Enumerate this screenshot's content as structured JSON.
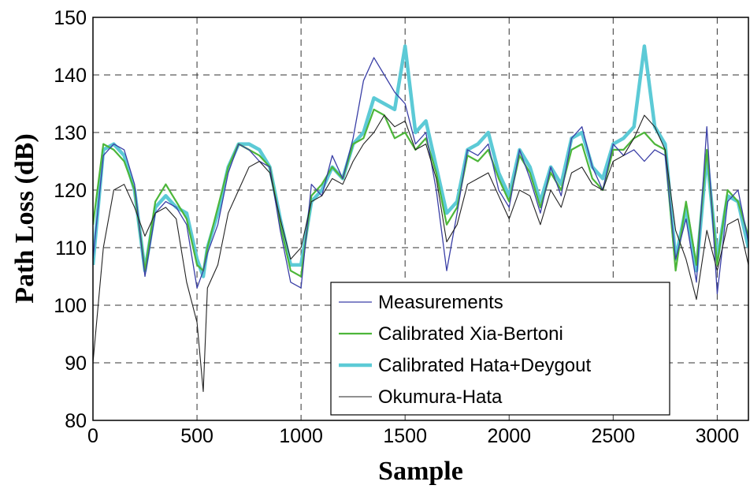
{
  "chart_data": {
    "type": "line",
    "title": "",
    "xlabel": "Sample",
    "ylabel": "Path Loss (dB)",
    "xlim": [
      0,
      3150
    ],
    "ylim": [
      80,
      150
    ],
    "xticks": [
      0,
      500,
      1000,
      1500,
      2000,
      2500,
      3000
    ],
    "yticks": [
      80,
      90,
      100,
      110,
      120,
      130,
      140,
      150
    ],
    "grid": true,
    "legend_position": "bottom-right",
    "series": [
      {
        "name": "Measurements",
        "color": "#3a3fa6",
        "x": [
          0,
          50,
          100,
          150,
          200,
          250,
          300,
          350,
          400,
          450,
          500,
          530,
          550,
          600,
          650,
          700,
          750,
          800,
          850,
          900,
          950,
          1000,
          1050,
          1100,
          1150,
          1200,
          1250,
          1300,
          1350,
          1400,
          1450,
          1500,
          1550,
          1600,
          1650,
          1700,
          1750,
          1800,
          1850,
          1900,
          1950,
          2000,
          2050,
          2100,
          2150,
          2200,
          2250,
          2300,
          2350,
          2400,
          2450,
          2500,
          2550,
          2600,
          2650,
          2700,
          2750,
          2800,
          2850,
          2900,
          2950,
          3000,
          3050,
          3100,
          3150
        ],
        "y": [
          108,
          126,
          128,
          127,
          121,
          105,
          116,
          118,
          117,
          114,
          103,
          106,
          109,
          114,
          123,
          128,
          127,
          125,
          124,
          113,
          104,
          103,
          121,
          119,
          126,
          122,
          129,
          139,
          143,
          140,
          137,
          135,
          128,
          130,
          120,
          106,
          116,
          127,
          126,
          128,
          120,
          117,
          127,
          122,
          116,
          124,
          119,
          129,
          131,
          124,
          120,
          128,
          126,
          127,
          125,
          127,
          126,
          108,
          115,
          104,
          131,
          102,
          118,
          120,
          111
        ]
      },
      {
        "name": "Calibrated Xia-Bertoni",
        "color": "#4db63a",
        "x": [
          0,
          50,
          100,
          150,
          200,
          250,
          300,
          350,
          400,
          450,
          500,
          530,
          550,
          600,
          650,
          700,
          750,
          800,
          850,
          900,
          950,
          1000,
          1050,
          1100,
          1150,
          1200,
          1250,
          1300,
          1350,
          1400,
          1450,
          1500,
          1550,
          1600,
          1650,
          1700,
          1750,
          1800,
          1850,
          1900,
          1950,
          2000,
          2050,
          2100,
          2150,
          2200,
          2250,
          2300,
          2350,
          2400,
          2450,
          2500,
          2550,
          2600,
          2650,
          2700,
          2750,
          2800,
          2850,
          2900,
          2950,
          3000,
          3050,
          3100,
          3150
        ],
        "y": [
          114,
          128,
          127,
          125,
          120,
          106,
          118,
          121,
          118,
          115,
          107,
          106,
          110,
          117,
          124,
          128,
          127,
          126,
          124,
          114,
          106,
          105,
          119,
          121,
          124,
          122,
          128,
          129,
          134,
          133,
          129,
          130,
          127,
          129,
          123,
          114,
          117,
          126,
          125,
          127,
          122,
          118,
          126,
          123,
          117,
          123,
          120,
          127,
          128,
          122,
          120,
          127,
          127,
          129,
          130,
          128,
          127,
          106,
          118,
          107,
          127,
          107,
          120,
          118,
          112
        ]
      },
      {
        "name": "Calibrated Hata+Deygout",
        "color": "#5ccad6",
        "x": [
          0,
          50,
          100,
          150,
          200,
          250,
          300,
          350,
          400,
          450,
          500,
          530,
          550,
          600,
          650,
          700,
          750,
          800,
          850,
          900,
          950,
          1000,
          1050,
          1100,
          1150,
          1200,
          1250,
          1300,
          1350,
          1400,
          1450,
          1500,
          1550,
          1600,
          1650,
          1700,
          1750,
          1800,
          1850,
          1900,
          1950,
          2000,
          2050,
          2100,
          2150,
          2200,
          2250,
          2300,
          2350,
          2400,
          2450,
          2500,
          2550,
          2600,
          2650,
          2700,
          2750,
          2800,
          2850,
          2900,
          2950,
          3000,
          3050,
          3100,
          3150
        ],
        "y": [
          107,
          127,
          128,
          126,
          120,
          106,
          117,
          119,
          117,
          116,
          108,
          105,
          110,
          116,
          124,
          128,
          128,
          127,
          124,
          115,
          107,
          107,
          118,
          120,
          124,
          122,
          128,
          130,
          136,
          135,
          134,
          145,
          130,
          132,
          124,
          116,
          118,
          127,
          128,
          130,
          123,
          119,
          127,
          124,
          118,
          124,
          121,
          129,
          130,
          124,
          122,
          128,
          129,
          131,
          145,
          131,
          128,
          108,
          117,
          106,
          126,
          108,
          119,
          118,
          110
        ]
      },
      {
        "name": "Okumura-Hata",
        "color": "#222222",
        "x": [
          0,
          50,
          100,
          150,
          200,
          250,
          300,
          350,
          400,
          450,
          500,
          530,
          550,
          600,
          650,
          700,
          750,
          800,
          850,
          900,
          950,
          1000,
          1050,
          1100,
          1150,
          1200,
          1250,
          1300,
          1350,
          1400,
          1450,
          1500,
          1550,
          1600,
          1650,
          1700,
          1750,
          1800,
          1850,
          1900,
          1950,
          2000,
          2050,
          2100,
          2150,
          2200,
          2250,
          2300,
          2350,
          2400,
          2450,
          2500,
          2550,
          2600,
          2650,
          2700,
          2750,
          2800,
          2850,
          2900,
          2950,
          3000,
          3050,
          3100,
          3150
        ],
        "y": [
          90,
          110,
          120,
          121,
          117,
          112,
          116,
          117,
          115,
          104,
          97,
          85,
          103,
          107,
          116,
          120,
          124,
          125,
          123,
          115,
          108,
          110,
          118,
          119,
          122,
          121,
          125,
          128,
          130,
          133,
          131,
          132,
          127,
          128,
          122,
          111,
          114,
          121,
          122,
          123,
          119,
          115,
          120,
          119,
          114,
          120,
          117,
          123,
          124,
          121,
          120,
          125,
          126,
          129,
          133,
          131,
          127,
          113,
          108,
          101,
          113,
          106,
          114,
          115,
          107
        ]
      }
    ]
  }
}
